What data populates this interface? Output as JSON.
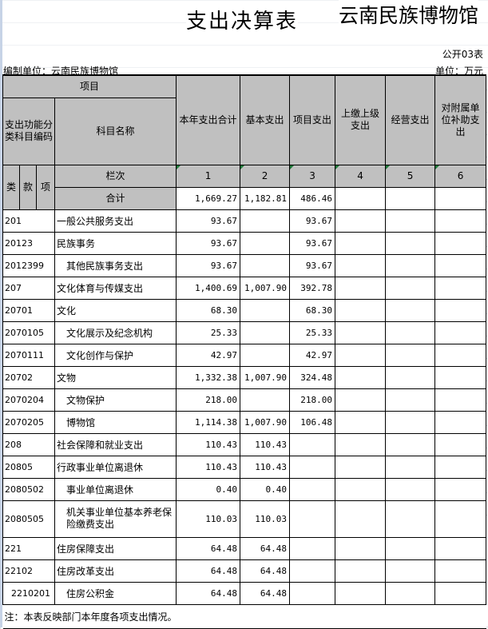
{
  "title": "支出决算表",
  "org_big": "云南民族博物馆",
  "form_no": "公开03表",
  "compiler": "编制单位：云南民族博物馆",
  "unit": "单位：万元",
  "header": {
    "item": "项目",
    "code": "支出功能分类科目编码",
    "name": "科目名称",
    "cols": [
      "本年支出合计",
      "基本支出",
      "项目支出",
      "上缴上级支出",
      "经营支出",
      "对附属单位补助支出"
    ],
    "lei": "类",
    "kuan": "款",
    "xiang": "项",
    "lanci": "栏次",
    "col_nums": [
      "1",
      "2",
      "3",
      "4",
      "5",
      "6"
    ],
    "total_label": "合计",
    "total": [
      "1,669.27",
      "1,182.81",
      "486.46",
      "",
      "",
      ""
    ]
  },
  "rows": [
    {
      "code": "201",
      "name": "一般公共服务支出",
      "v": [
        "93.67",
        "",
        "93.67",
        "",
        "",
        ""
      ]
    },
    {
      "code": "20123",
      "name": "民族事务",
      "v": [
        "93.67",
        "",
        "93.67",
        "",
        "",
        ""
      ]
    },
    {
      "code": "2012399",
      "name": "其他民族事务支出",
      "v": [
        "93.67",
        "",
        "93.67",
        "",
        "",
        ""
      ]
    },
    {
      "code": "207",
      "name": "文化体育与传媒支出",
      "v": [
        "1,400.69",
        "1,007.90",
        "392.78",
        "",
        "",
        ""
      ]
    },
    {
      "code": "20701",
      "name": "文化",
      "v": [
        "68.30",
        "",
        "68.30",
        "",
        "",
        ""
      ]
    },
    {
      "code": "2070105",
      "name": "文化展示及纪念机构",
      "v": [
        "25.33",
        "",
        "25.33",
        "",
        "",
        ""
      ]
    },
    {
      "code": "2070111",
      "name": "文化创作与保护",
      "v": [
        "42.97",
        "",
        "42.97",
        "",
        "",
        ""
      ]
    },
    {
      "code": "20702",
      "name": "文物",
      "v": [
        "1,332.38",
        "1,007.90",
        "324.48",
        "",
        "",
        ""
      ]
    },
    {
      "code": "2070204",
      "name": "文物保护",
      "v": [
        "218.00",
        "",
        "218.00",
        "",
        "",
        ""
      ]
    },
    {
      "code": "2070205",
      "name": "博物馆",
      "v": [
        "1,114.38",
        "1,007.90",
        "106.48",
        "",
        "",
        ""
      ]
    },
    {
      "code": "208",
      "name": "社会保障和就业支出",
      "v": [
        "110.43",
        "110.43",
        "",
        "",
        "",
        ""
      ]
    },
    {
      "code": "20805",
      "name": "行政事业单位离退休",
      "v": [
        "110.43",
        "110.43",
        "",
        "",
        "",
        ""
      ]
    },
    {
      "code": "2080502",
      "name": "事业单位离退休",
      "v": [
        "0.40",
        "0.40",
        "",
        "",
        "",
        ""
      ]
    },
    {
      "code": "2080505",
      "name": "机关事业单位基本养老保险缴费支出",
      "v": [
        "110.03",
        "110.03",
        "",
        "",
        "",
        ""
      ]
    },
    {
      "code": "221",
      "name": "住房保障支出",
      "v": [
        "64.48",
        "64.48",
        "",
        "",
        "",
        ""
      ]
    },
    {
      "code": "22102",
      "name": "住房改革支出",
      "v": [
        "64.48",
        "64.48",
        "",
        "",
        "",
        ""
      ]
    },
    {
      "code": "2210201",
      "name": "住房公积金",
      "v": [
        "64.48",
        "64.48",
        "",
        "",
        "",
        ""
      ]
    }
  ],
  "note": "注：本表反映部门本年度各项支出情况。"
}
